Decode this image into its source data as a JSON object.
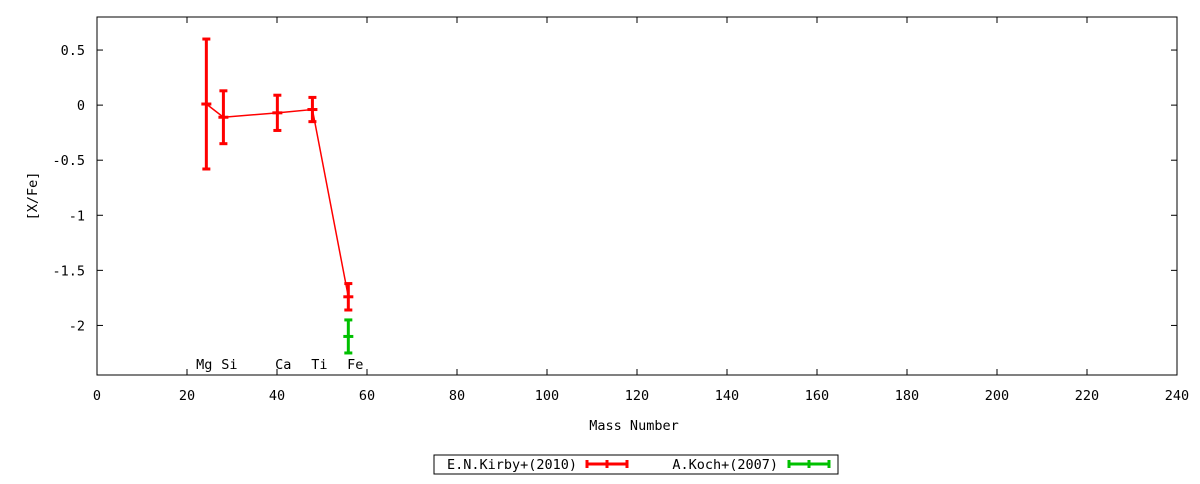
{
  "chart_data": {
    "type": "scatter",
    "title": "",
    "xlabel": "Mass Number",
    "ylabel": "[X/Fe]",
    "xlim": [
      0,
      240
    ],
    "ylim": [
      -2.45,
      0.8
    ],
    "xticks": [
      0,
      20,
      40,
      60,
      80,
      100,
      120,
      140,
      160,
      180,
      200,
      220,
      240
    ],
    "yticks": [
      0.5,
      0,
      -0.5,
      -1,
      -1.5,
      -2
    ],
    "ytick_labels": [
      "0.5",
      "0",
      "-0.5",
      "-1",
      "-1.5",
      "-2"
    ],
    "grid": false,
    "legend_position": "bottom-center",
    "element_labels": [
      {
        "label": "Mg",
        "x": 24.3
      },
      {
        "label": "Si",
        "x": 28.09
      },
      {
        "label": "Ca",
        "x": 40.08
      },
      {
        "label": "Ti",
        "x": 47.87
      },
      {
        "label": "Fe",
        "x": 55.85
      }
    ],
    "series": [
      {
        "name": "E.N.Kirby+(2010)",
        "color": "#ff0000",
        "connected": true,
        "x": [
          24.3,
          28.09,
          40.08,
          47.87,
          55.85
        ],
        "y": [
          0.01,
          -0.11,
          -0.07,
          -0.04,
          -1.74
        ],
        "yerr": [
          0.59,
          0.24,
          0.16,
          0.11,
          0.12
        ]
      },
      {
        "name": "A.Koch+(2007)",
        "color": "#00c000",
        "connected": false,
        "x": [
          55.85
        ],
        "y": [
          -2.1
        ],
        "yerr": [
          0.15
        ]
      }
    ]
  }
}
